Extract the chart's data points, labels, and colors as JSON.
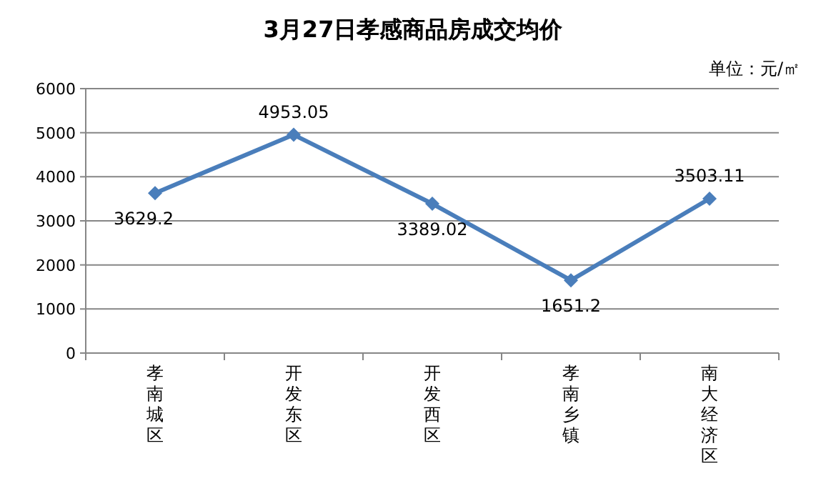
{
  "chart_data": {
    "type": "line",
    "title": "3月27日孝感商品房成交均价",
    "annotations": [
      "单位：元/㎡"
    ],
    "categories": [
      "孝南城区",
      "开发东区",
      "开发西区",
      "孝南乡镇",
      "南大经济区"
    ],
    "series": [
      {
        "color": "#4a7ebb",
        "values": [
          3629.2,
          4953.05,
          3389.02,
          1651.2,
          3503.11
        ]
      }
    ],
    "ylim": [
      0,
      6000
    ],
    "yticks": [
      0,
      1000,
      2000,
      3000,
      4000,
      5000,
      6000
    ],
    "grid": "y",
    "marker": "diamond",
    "data_labels": true
  }
}
